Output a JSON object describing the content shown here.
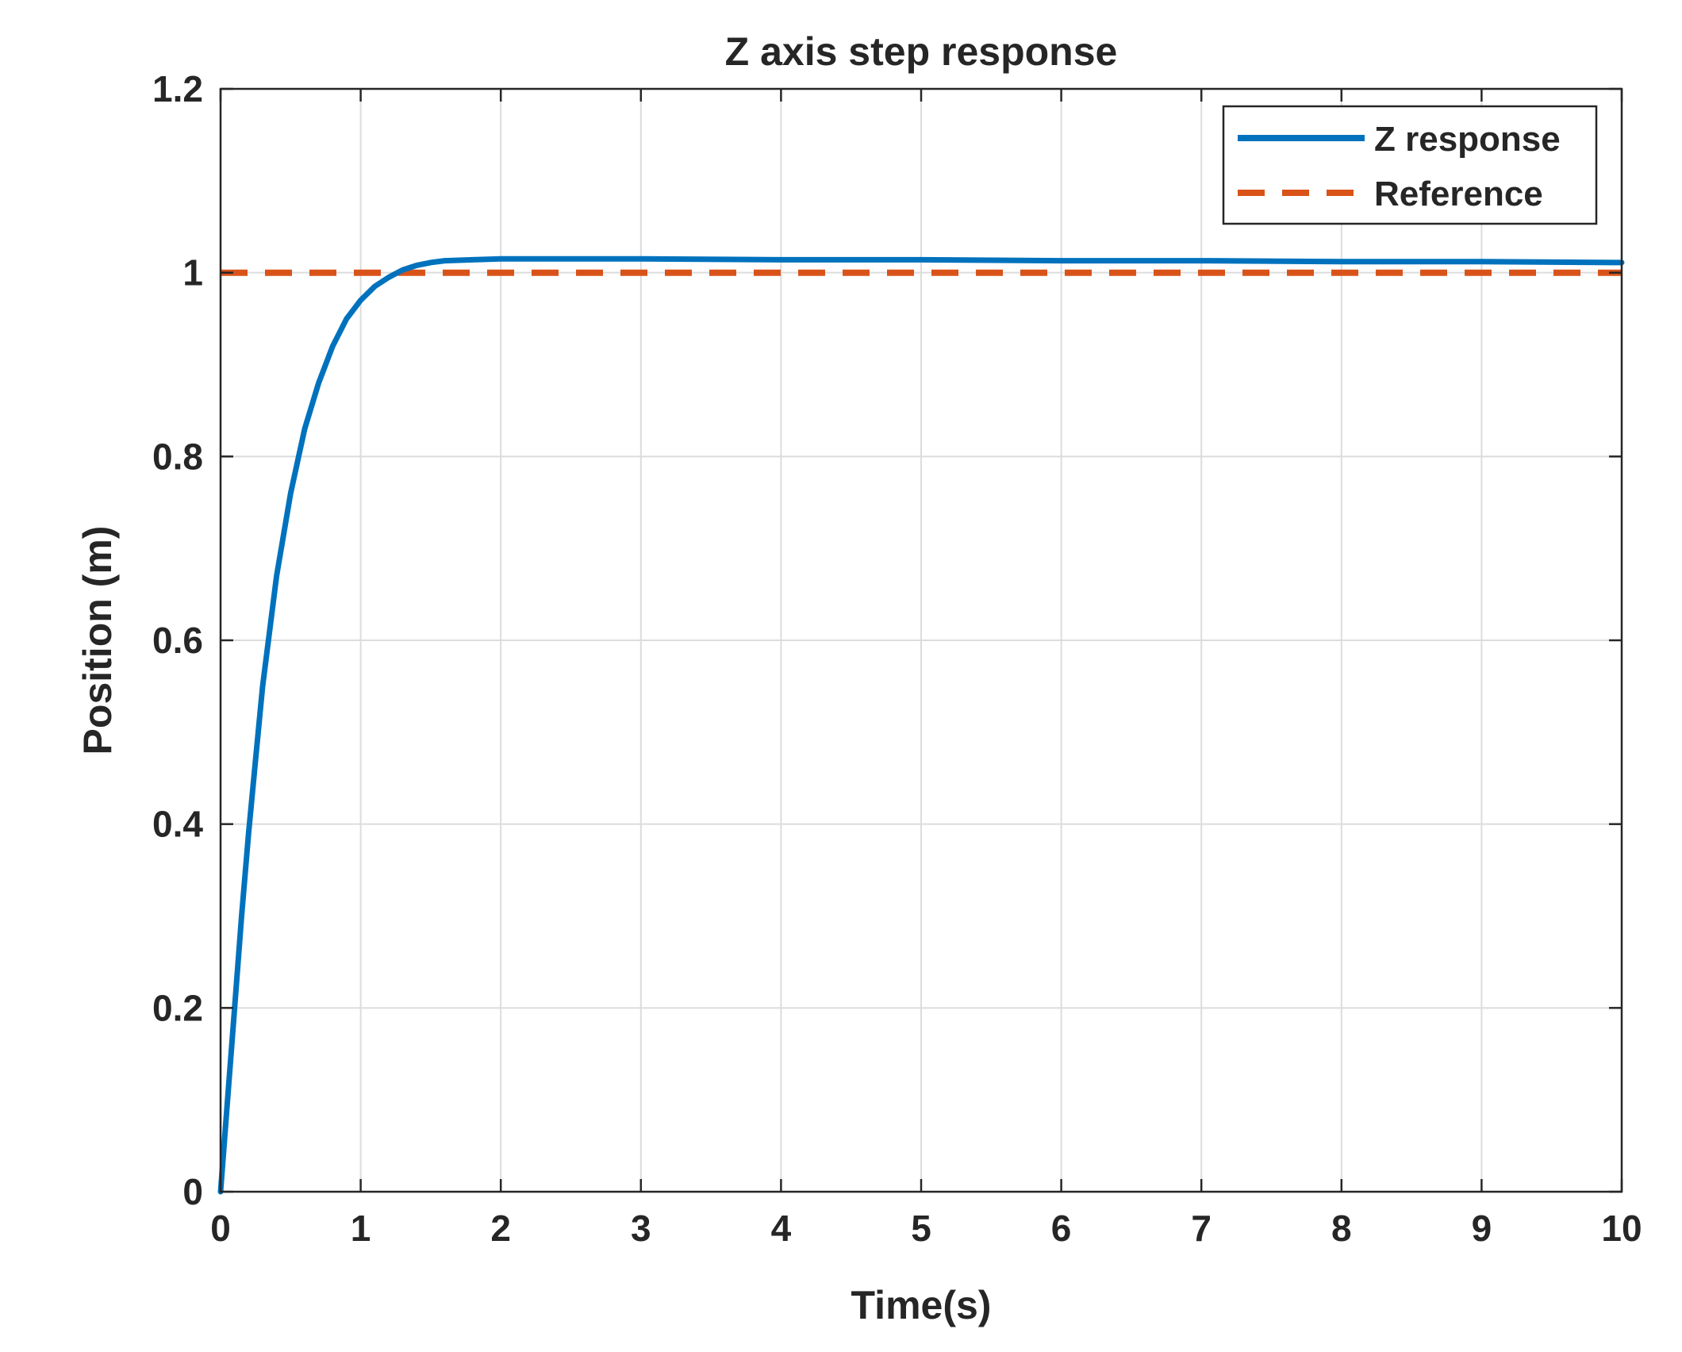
{
  "chart_data": {
    "type": "line",
    "title": "Z axis step response",
    "xlabel": "Time(s)",
    "ylabel": "Position (m)",
    "xlim": [
      0,
      10
    ],
    "ylim": [
      0,
      1.2
    ],
    "xticks": [
      "0",
      "1",
      "2",
      "3",
      "4",
      "5",
      "6",
      "7",
      "8",
      "9",
      "10"
    ],
    "yticks": [
      "0",
      "0.2",
      "0.4",
      "0.6",
      "0.8",
      "1",
      "1.2"
    ],
    "grid": true,
    "legend_position": "top-right",
    "series": [
      {
        "name": "Z response",
        "style": "solid",
        "color": "#0072BD",
        "x": [
          0,
          0.05,
          0.1,
          0.15,
          0.2,
          0.25,
          0.3,
          0.4,
          0.5,
          0.6,
          0.7,
          0.8,
          0.9,
          1.0,
          1.1,
          1.2,
          1.3,
          1.4,
          1.5,
          1.6,
          1.8,
          2.0,
          2.5,
          3.0,
          4.0,
          5.0,
          6.0,
          7.0,
          8.0,
          9.0,
          10.0
        ],
        "y": [
          0,
          0.1,
          0.2,
          0.3,
          0.39,
          0.47,
          0.55,
          0.67,
          0.76,
          0.83,
          0.88,
          0.92,
          0.95,
          0.97,
          0.985,
          0.995,
          1.003,
          1.008,
          1.011,
          1.013,
          1.014,
          1.015,
          1.015,
          1.015,
          1.014,
          1.014,
          1.013,
          1.013,
          1.012,
          1.012,
          1.011
        ]
      },
      {
        "name": "Reference",
        "style": "dashed",
        "color": "#D95319",
        "x": [
          0,
          10
        ],
        "y": [
          1,
          1
        ]
      }
    ]
  }
}
